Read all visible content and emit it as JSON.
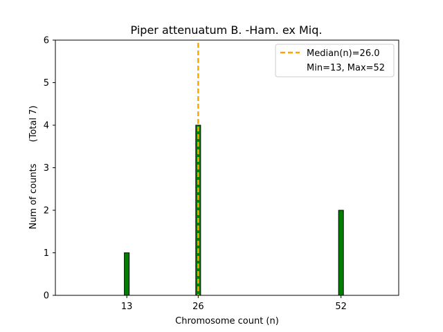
{
  "chart_data": {
    "type": "bar",
    "title": "Piper attenuatum B. -Ham. ex Miq.",
    "xlabel": "Chromosome count (n)",
    "ylabel": "Num of counts",
    "ylabel_secondary": "(Total 7)",
    "xlim": [
      0,
      62.5
    ],
    "ylim": [
      0,
      6
    ],
    "x_ticks": [
      13,
      26,
      52
    ],
    "y_ticks": [
      0,
      1,
      2,
      3,
      4,
      5,
      6
    ],
    "bars": [
      {
        "x": 13,
        "value": 1
      },
      {
        "x": 26,
        "value": 4
      },
      {
        "x": 52,
        "value": 2
      }
    ],
    "bar_color": "#008000",
    "median": {
      "x": 26.0,
      "color": "#ffa500",
      "label": "Median(n)=26.0"
    },
    "legend": {
      "placement": "top-right",
      "entries": [
        "Median(n)=26.0",
        "Min=13, Max=52"
      ]
    },
    "grid": false
  }
}
